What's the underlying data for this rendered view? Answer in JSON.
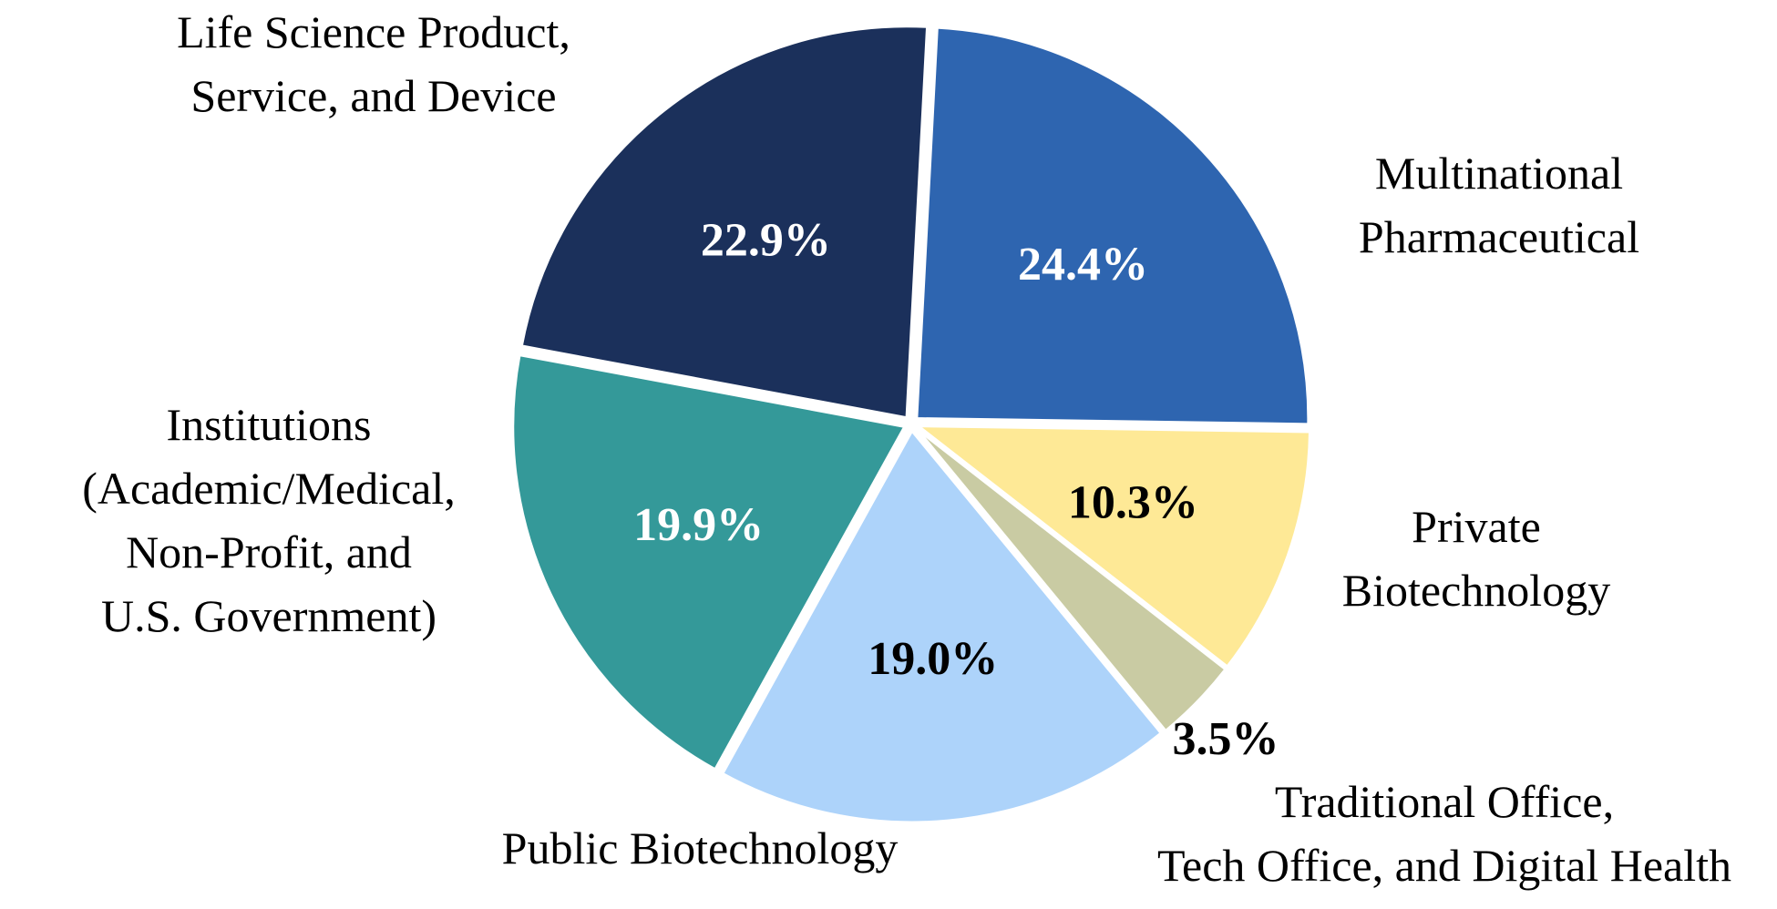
{
  "chart_data": {
    "type": "pie",
    "slices": [
      {
        "labels": [
          "Multinational",
          "Pharmaceutical"
        ],
        "value": 24.4,
        "value_label": "24.4%",
        "color": "#2E65B0",
        "value_color": "#ffffff"
      },
      {
        "labels": [
          "Private",
          "Biotechnology"
        ],
        "value": 10.3,
        "value_label": "10.3%",
        "color": "#FEE996",
        "value_color": "#000000"
      },
      {
        "labels": [
          "Traditional Office,",
          "Tech Office, and Digital Health"
        ],
        "value": 3.5,
        "value_label": "3.5%",
        "color": "#C9CBA3",
        "value_color": "#000000"
      },
      {
        "labels": [
          "Public Biotechnology"
        ],
        "value": 19.0,
        "value_label": "19.0%",
        "color": "#ADD3FA",
        "value_color": "#000000"
      },
      {
        "labels": [
          "Institutions",
          "(Academic/Medical,",
          "Non-Profit, and",
          "U.S. Government)"
        ],
        "value": 19.9,
        "value_label": "19.9%",
        "color": "#349999",
        "value_color": "#ffffff"
      },
      {
        "labels": [
          "Life Science Product,",
          "Service, and Device"
        ],
        "value": 22.9,
        "value_label": "22.9%",
        "color": "#1B305B",
        "value_color": "#ffffff"
      }
    ],
    "title": "",
    "legend": "none"
  }
}
